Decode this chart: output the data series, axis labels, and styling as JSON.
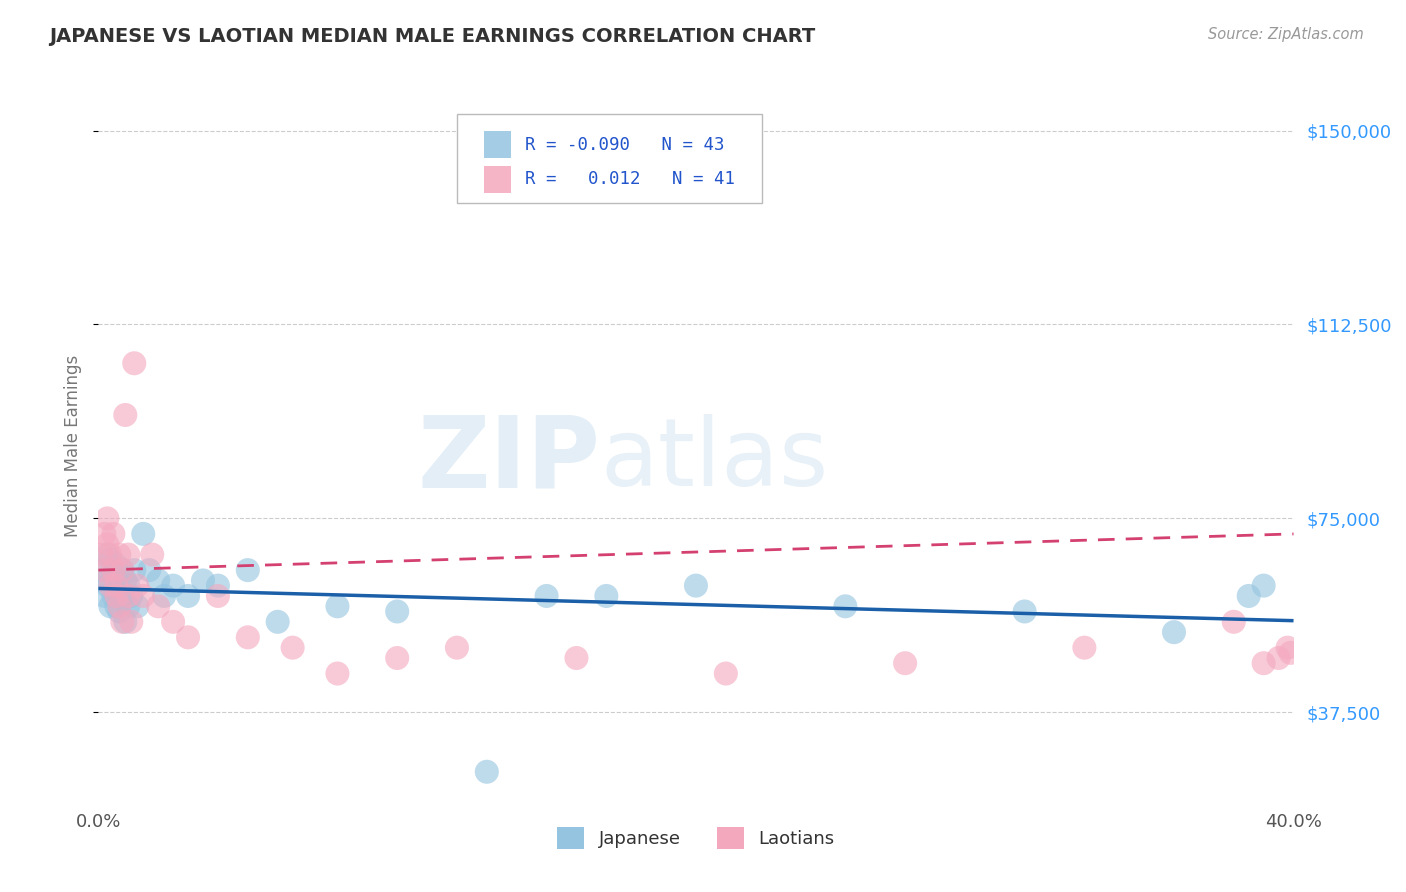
{
  "title": "JAPANESE VS LAOTIAN MEDIAN MALE EARNINGS CORRELATION CHART",
  "source": "Source: ZipAtlas.com",
  "ylabel_label": "Median Male Earnings",
  "xlim": [
    0.0,
    0.4
  ],
  "yticks": [
    37500,
    75000,
    112500,
    150000
  ],
  "ytick_labels": [
    "$37,500",
    "$75,000",
    "$112,500",
    "$150,000"
  ],
  "watermark_zip": "ZIP",
  "watermark_atlas": "atlas",
  "japanese_color": "#94c4e0",
  "laotian_color": "#f4a8be",
  "japanese_line_color": "#1a5fa8",
  "laotian_line_color": "#d44070",
  "japanese_x": [
    0.001,
    0.002,
    0.002,
    0.003,
    0.003,
    0.004,
    0.004,
    0.005,
    0.005,
    0.006,
    0.006,
    0.007,
    0.007,
    0.008,
    0.008,
    0.009,
    0.009,
    0.01,
    0.01,
    0.011,
    0.012,
    0.013,
    0.015,
    0.017,
    0.02,
    0.022,
    0.025,
    0.03,
    0.035,
    0.04,
    0.05,
    0.06,
    0.08,
    0.1,
    0.13,
    0.15,
    0.17,
    0.2,
    0.25,
    0.31,
    0.36,
    0.385,
    0.39
  ],
  "japanese_y": [
    63000,
    65000,
    60000,
    68000,
    62000,
    67000,
    58000,
    64000,
    60000,
    66000,
    58000,
    62000,
    57000,
    65000,
    60000,
    63000,
    55000,
    62000,
    58000,
    60000,
    65000,
    58000,
    72000,
    65000,
    63000,
    60000,
    62000,
    60000,
    63000,
    62000,
    65000,
    55000,
    58000,
    57000,
    26000,
    60000,
    60000,
    62000,
    58000,
    57000,
    53000,
    60000,
    62000
  ],
  "laotian_x": [
    0.001,
    0.002,
    0.002,
    0.003,
    0.003,
    0.004,
    0.004,
    0.005,
    0.005,
    0.006,
    0.006,
    0.007,
    0.007,
    0.008,
    0.008,
    0.009,
    0.01,
    0.01,
    0.011,
    0.012,
    0.013,
    0.015,
    0.018,
    0.02,
    0.025,
    0.03,
    0.04,
    0.05,
    0.065,
    0.08,
    0.1,
    0.12,
    0.16,
    0.21,
    0.27,
    0.33,
    0.38,
    0.39,
    0.395,
    0.398,
    0.399
  ],
  "laotian_y": [
    68000,
    72000,
    65000,
    75000,
    70000,
    68000,
    62000,
    65000,
    72000,
    60000,
    62000,
    68000,
    58000,
    65000,
    55000,
    95000,
    68000,
    60000,
    55000,
    105000,
    62000,
    60000,
    68000,
    58000,
    55000,
    52000,
    60000,
    52000,
    50000,
    45000,
    48000,
    50000,
    48000,
    45000,
    47000,
    50000,
    55000,
    47000,
    48000,
    50000,
    49000
  ],
  "background_color": "#ffffff",
  "plot_bg_color": "#ffffff",
  "grid_color": "#cccccc",
  "title_color": "#333333",
  "axis_label_color": "#777777",
  "ytick_color": "#3399ff",
  "xtick_color": "#555555"
}
